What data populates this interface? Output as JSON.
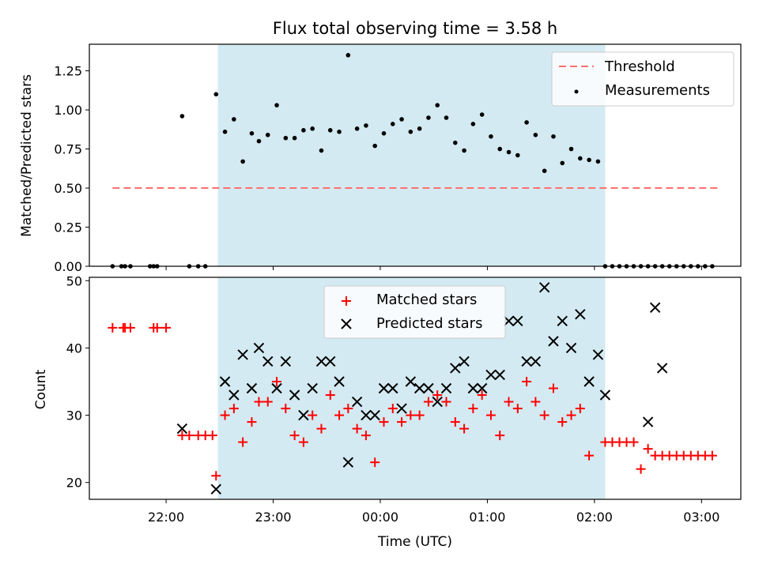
{
  "chart_data": [
    {
      "type": "scatter",
      "title": "Flux total observing time = 3.58 h",
      "xlabel": "",
      "ylabel": "Matched/Predicted stars",
      "ylim": [
        0,
        1.42
      ],
      "yticks": [
        "0.00",
        "0.25",
        "0.50",
        "0.75",
        "1.00",
        "1.25"
      ],
      "x_range": [
        "21:17",
        "03:22"
      ],
      "shaded_span": [
        "22:29",
        "02:06"
      ],
      "shade_color": "#add8e6",
      "threshold": {
        "name": "Threshold",
        "value": 0.5,
        "x": [
          "21:30",
          "03:10"
        ],
        "color": "#ff7070"
      },
      "legend": {
        "position": "top-right",
        "entries": [
          "Threshold",
          "Measurements"
        ]
      },
      "series": [
        {
          "name": "Measurements",
          "color": "#000000",
          "x": [
            "21:30",
            "21:35",
            "21:37",
            "21:40",
            "21:51",
            "21:53",
            "21:55",
            "22:09",
            "22:13",
            "22:18",
            "22:22",
            "22:28",
            "22:33",
            "22:38",
            "22:43",
            "22:48",
            "22:52",
            "22:57",
            "23:02",
            "23:07",
            "23:12",
            "23:17",
            "23:22",
            "23:27",
            "23:32",
            "23:37",
            "23:42",
            "23:47",
            "23:52",
            "23:57",
            "00:02",
            "00:07",
            "00:12",
            "00:17",
            "00:22",
            "00:27",
            "00:32",
            "00:37",
            "00:42",
            "00:47",
            "00:52",
            "00:57",
            "01:02",
            "01:07",
            "01:12",
            "01:17",
            "01:22",
            "01:27",
            "01:32",
            "01:37",
            "01:42",
            "01:47",
            "01:52",
            "01:57",
            "02:02",
            "02:06",
            "02:10",
            "02:14",
            "02:18",
            "02:22",
            "02:26",
            "02:30",
            "02:34",
            "02:38",
            "02:42",
            "02:46",
            "02:50",
            "02:54",
            "02:58",
            "03:02",
            "03:06"
          ],
          "y": [
            0.0,
            0.0,
            0.0,
            0.0,
            0.0,
            0.0,
            0.0,
            0.96,
            0.0,
            0.0,
            0.0,
            1.1,
            0.86,
            0.94,
            0.67,
            0.85,
            0.8,
            0.84,
            1.03,
            0.82,
            0.82,
            0.87,
            0.88,
            0.74,
            0.87,
            0.86,
            1.35,
            0.88,
            0.9,
            0.77,
            0.85,
            0.91,
            0.94,
            0.86,
            0.88,
            0.95,
            1.03,
            0.95,
            0.79,
            0.74,
            0.91,
            0.97,
            0.83,
            0.75,
            0.73,
            0.71,
            0.92,
            0.84,
            0.61,
            0.83,
            0.66,
            0.75,
            0.69,
            0.68,
            0.67,
            0.0,
            0.0,
            0.0,
            0.0,
            0.0,
            0.0,
            0.0,
            0.0,
            0.0,
            0.0,
            0.0,
            0.0,
            0.0,
            0.0,
            0.0,
            0.0
          ]
        }
      ]
    },
    {
      "type": "scatter",
      "title": "",
      "xlabel": "Time (UTC)",
      "ylabel": "Count",
      "ylim": [
        17.5,
        50.5
      ],
      "yticks": [
        "20",
        "30",
        "40",
        "50"
      ],
      "xticks": [
        "22:00",
        "23:00",
        "00:00",
        "01:00",
        "02:00",
        "03:00"
      ],
      "x_range": [
        "21:17",
        "03:22"
      ],
      "shaded_span": [
        "22:29",
        "02:06"
      ],
      "legend": {
        "position": "top-center",
        "entries": [
          "Matched stars",
          "Predicted stars"
        ]
      },
      "series": [
        {
          "name": "Matched stars",
          "marker": "plus",
          "color": "#ff0000",
          "x": [
            "21:30",
            "21:36",
            "21:37",
            "21:40",
            "21:53",
            "21:55",
            "22:00",
            "22:09",
            "22:13",
            "22:18",
            "22:22",
            "22:26",
            "22:28",
            "22:33",
            "22:38",
            "22:43",
            "22:48",
            "22:52",
            "22:57",
            "23:02",
            "23:07",
            "23:12",
            "23:17",
            "23:22",
            "23:27",
            "23:32",
            "23:37",
            "23:42",
            "23:47",
            "23:52",
            "23:57",
            "00:02",
            "00:07",
            "00:12",
            "00:17",
            "00:22",
            "00:27",
            "00:32",
            "00:37",
            "00:42",
            "00:47",
            "00:52",
            "00:57",
            "01:02",
            "01:07",
            "01:12",
            "01:17",
            "01:22",
            "01:27",
            "01:32",
            "01:37",
            "01:42",
            "01:47",
            "01:52",
            "01:57",
            "02:06",
            "02:10",
            "02:14",
            "02:18",
            "02:22",
            "02:26",
            "02:30",
            "02:34",
            "02:38",
            "02:42",
            "02:46",
            "02:50",
            "02:54",
            "02:58",
            "03:02",
            "03:06"
          ],
          "y": [
            43,
            43,
            43,
            43,
            43,
            43,
            43,
            27,
            27,
            27,
            27,
            27,
            21,
            30,
            31,
            26,
            29,
            32,
            32,
            35,
            31,
            27,
            26,
            30,
            28,
            33,
            30,
            31,
            28,
            27,
            23,
            29,
            31,
            29,
            30,
            30,
            32,
            33,
            32,
            29,
            28,
            31,
            33,
            30,
            27,
            32,
            31,
            35,
            32,
            30,
            34,
            29,
            30,
            31,
            24,
            26,
            26,
            26,
            26,
            26,
            22,
            25,
            24,
            24,
            24,
            24,
            24,
            24,
            24,
            24,
            24
          ]
        },
        {
          "name": "Predicted stars",
          "marker": "cross",
          "color": "#000000",
          "x": [
            "22:09",
            "22:28",
            "22:33",
            "22:38",
            "22:43",
            "22:48",
            "22:52",
            "22:57",
            "23:02",
            "23:07",
            "23:12",
            "23:17",
            "23:22",
            "23:27",
            "23:32",
            "23:37",
            "23:42",
            "23:47",
            "23:52",
            "23:57",
            "00:02",
            "00:07",
            "00:12",
            "00:17",
            "00:22",
            "00:27",
            "00:32",
            "00:37",
            "00:42",
            "00:47",
            "00:52",
            "00:57",
            "01:02",
            "01:07",
            "01:12",
            "01:17",
            "01:22",
            "01:27",
            "01:32",
            "01:37",
            "01:42",
            "01:47",
            "01:52",
            "01:57",
            "02:02",
            "02:06",
            "02:30",
            "02:34",
            "02:38"
          ],
          "y": [
            28,
            19,
            35,
            33,
            39,
            34,
            40,
            38,
            34,
            38,
            33,
            30,
            34,
            38,
            38,
            35,
            23,
            32,
            30,
            30,
            34,
            34,
            31,
            35,
            34,
            34,
            32,
            34,
            37,
            38,
            34,
            34,
            36,
            36,
            44,
            44,
            38,
            38,
            49,
            41,
            44,
            40,
            45,
            35,
            39,
            33,
            29,
            46,
            37
          ]
        }
      ]
    }
  ]
}
